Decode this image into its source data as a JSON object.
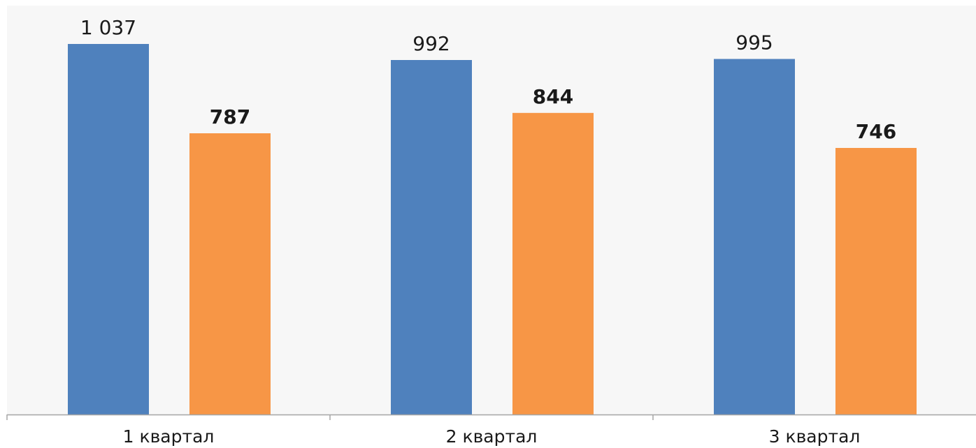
{
  "chart_data": {
    "type": "bar",
    "categories": [
      "1 квартал",
      "2 квартал",
      "3 квартал"
    ],
    "series": [
      {
        "values": [
          1037,
          992,
          995
        ],
        "value_labels": [
          "1 037",
          "992",
          "995"
        ],
        "color": "#4f81bd",
        "label_weight": "normal"
      },
      {
        "values": [
          787,
          844,
          746
        ],
        "value_labels": [
          "787",
          "844",
          "746"
        ],
        "color": "#f79646",
        "label_weight": "bold"
      }
    ],
    "ylim": [
      0,
      1100
    ],
    "grid": false,
    "legend": "none",
    "plot_background": "#f7f7f7",
    "axis_color": "#a6a6a6"
  }
}
